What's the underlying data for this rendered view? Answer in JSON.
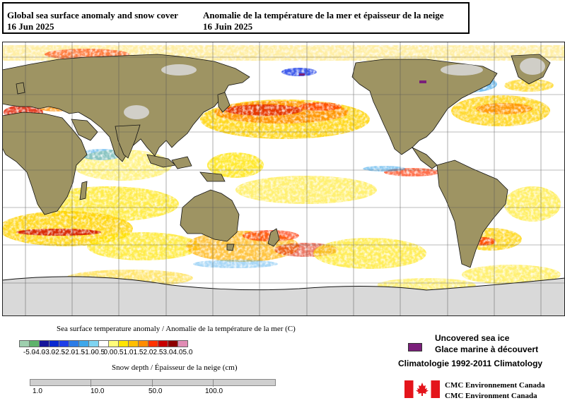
{
  "title": {
    "en_line1": "Global sea surface anomaly and snow cover",
    "en_line2": "16 Jun 2025",
    "fr_line1": "Anomalie de la température de la mer et épaisseur de la neige",
    "fr_line2": "16 Juin 2025"
  },
  "sst_legend": {
    "title": "Sea surface temperature anomaly / Anomalie de la température de la mer (C)",
    "labels": [
      "-5.0",
      "-4.0",
      "-3.0",
      "-2.5",
      "-2.0",
      "-1.5",
      "-1.0",
      "-0.5",
      "0.0",
      "0.5",
      "1.0",
      "1.5",
      "2.0",
      "2.5",
      "3.0",
      "4.0",
      "5.0"
    ],
    "colors": [
      "#9ecfae",
      "#5fb36c",
      "#16169a",
      "#0a2ad0",
      "#1f3fe8",
      "#2d7ce6",
      "#3ea7ea",
      "#7fd4f2",
      "#ffffff",
      "#fffd7a",
      "#ffe400",
      "#ffbe00",
      "#ff8c00",
      "#ff3300",
      "#c80000",
      "#8c0000",
      "#e08cb4"
    ]
  },
  "snow_legend": {
    "title": "Snow depth / Épaisseur de la neige (cm)",
    "labels": [
      "1.0",
      "10.0",
      "50.0",
      "100.0"
    ],
    "color": "#cfcfcf"
  },
  "sea_ice": {
    "label_en": "Uncovered sea ice",
    "label_fr": "Glace marine à découvert",
    "color": "#7a1f7a"
  },
  "climatology": "Climatologie 1992-2011 Climatology",
  "credit": {
    "line1": "CMC Environnement Canada",
    "line2": "CMC Environment Canada"
  },
  "colors": {
    "land": "#9e9463",
    "ocean": "#ffffff",
    "grid": "#555555"
  }
}
